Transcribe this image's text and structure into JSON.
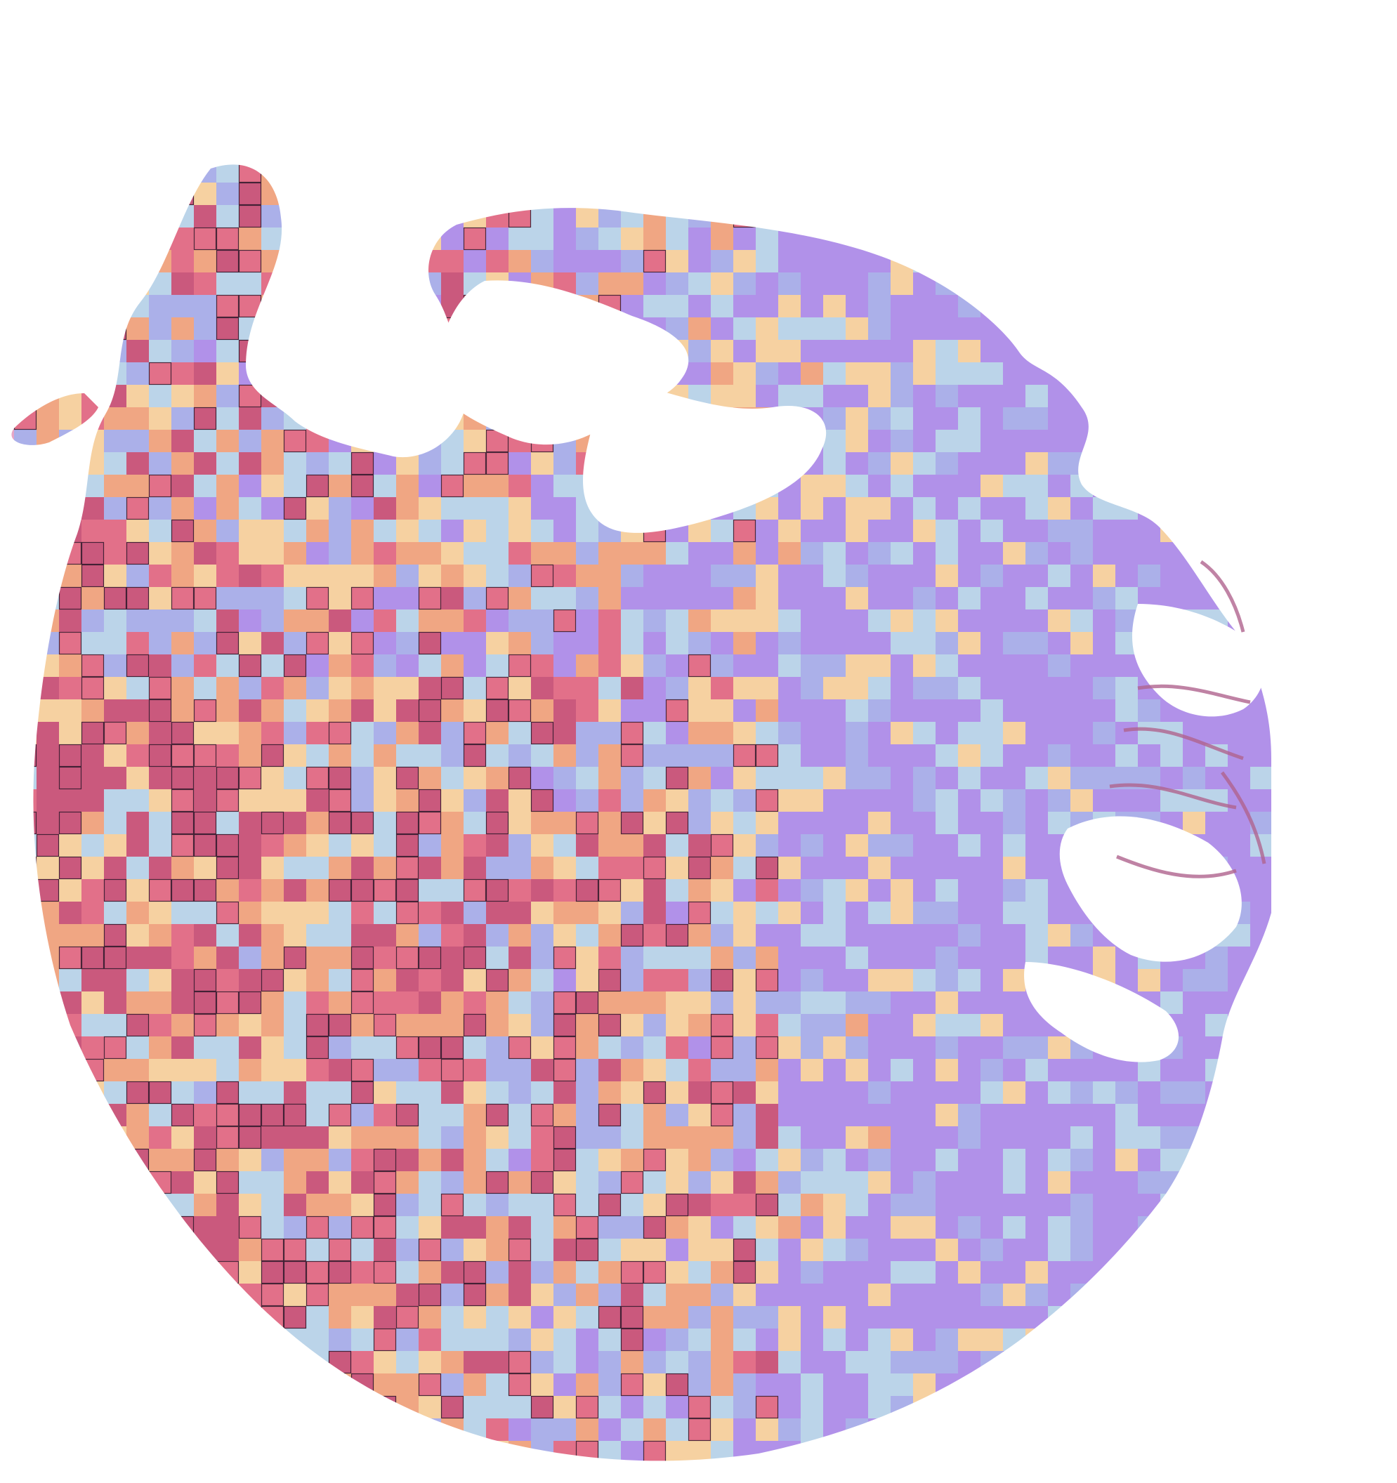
{
  "image": {
    "background_color": "#ffffff",
    "tissue_colors": {
      "stroma_pink": "#e7a6c6",
      "nuclei_purple": "#6a3f86"
    },
    "heatmap": {
      "palette": [
        "#8f85ff",
        "#86b7ff",
        "#9ff1ff",
        "#ffeb8a",
        "#f5a65b",
        "#df4f64",
        "#b82a50"
      ],
      "opacity": 0.62,
      "outlined_highest_tiles": true,
      "outline_color": "#1a1020"
    }
  }
}
